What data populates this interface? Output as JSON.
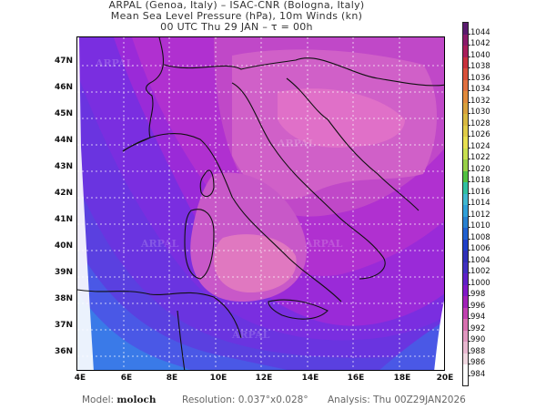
{
  "header": {
    "line1": "ARPAL (Genoa, Italy)  –  ISAC-CNR (Bologna, Italy)",
    "line2": "Mean Sea Level Pressure (hPa), 10m Winds (kn)",
    "line3": "00 UTC Thu 29 JAN  –  τ = 00h"
  },
  "map": {
    "watermark": "ARPAL",
    "lat_labels": [
      "47N",
      "46N",
      "45N",
      "44N",
      "43N",
      "42N",
      "41N",
      "40N",
      "39N",
      "38N",
      "37N",
      "36N"
    ],
    "lon_labels": [
      "4E",
      "6E",
      "8E",
      "10E",
      "12E",
      "14E",
      "16E",
      "18E",
      "20E"
    ],
    "lat_range": [
      35.4,
      47.9
    ],
    "lon_range": [
      4,
      20
    ]
  },
  "colorbar": {
    "levels": [
      "1044",
      "1042",
      "1040",
      "1038",
      "1036",
      "1034",
      "1032",
      "1030",
      "1028",
      "1026",
      "1024",
      "1022",
      "1020",
      "1018",
      "1016",
      "1014",
      "1012",
      "1010",
      "1008",
      "1006",
      "1004",
      "1002",
      "1000",
      "998",
      "996",
      "994",
      "992",
      "990",
      "988",
      "986",
      "984"
    ],
    "colors": [
      "#5a1a6e",
      "#8a1a6a",
      "#a81e5a",
      "#c8323c",
      "#d8503a",
      "#e07040",
      "#e08a3c",
      "#d8a03c",
      "#d8b840",
      "#e0cc48",
      "#e8e050",
      "#c8e050",
      "#98d048",
      "#50c040",
      "#30c0a0",
      "#40b8d0",
      "#30a0d8",
      "#2880d0",
      "#2060d0",
      "#2040c8",
      "#3030b8",
      "#4030c0",
      "#6020c8",
      "#8018c8",
      "#a020b8",
      "#c040b0",
      "#d870b0",
      "#e098c0",
      "#e8b8d0",
      "#f0d8e0",
      "#ffffff"
    ],
    "units": "hPa"
  },
  "footer": {
    "model_label": "Model:",
    "model_value": "moloch",
    "resolution_label": "Resolution:",
    "resolution_value": "0.037°x0.028°",
    "analysis_label": "Analysis:",
    "analysis_value": "Thu  00Z29JAN2026"
  }
}
